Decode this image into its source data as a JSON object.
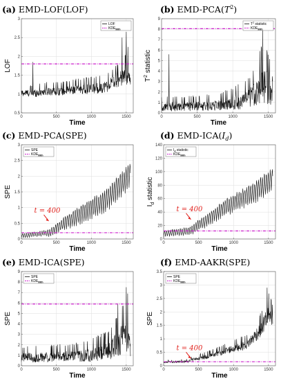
{
  "chart_data": [
    {
      "type": "line",
      "label": "(a)",
      "title_text": "EMD-LOF(LOF)",
      "xlabel": "Time",
      "ylabel": "LOF",
      "xlim": [
        0,
        1600
      ],
      "ylim": [
        0.5,
        3
      ],
      "xticks": [
        0,
        500,
        1000,
        1500
      ],
      "yticks": [
        0.5,
        1,
        1.5,
        2,
        2.5,
        3
      ],
      "legend_position": "top-right",
      "series": [
        {
          "name": "LOF",
          "kind": "noisy",
          "x": [
            0,
            200,
            400,
            600,
            800,
            1000,
            1200,
            1400,
            1500,
            1560
          ],
          "y": [
            1.0,
            1.0,
            1.05,
            1.05,
            1.1,
            1.1,
            1.15,
            1.35,
            1.45,
            1.3
          ],
          "amplitude": [
            0.15,
            0.18,
            0.2,
            0.2,
            0.22,
            0.25,
            0.28,
            0.35,
            0.45,
            0.35
          ],
          "peaks": [
            [
              165,
              1.85
            ],
            [
              1440,
              2.5
            ],
            [
              1500,
              2.65
            ],
            [
              1525,
              2.25
            ]
          ]
        },
        {
          "name": "KDE99th",
          "kind": "threshold",
          "value": 1.8,
          "color": "#cc22cc"
        }
      ],
      "legend": [
        {
          "text": "LOF",
          "sub": ""
        },
        {
          "text": "KDE",
          "sub": "99th"
        }
      ]
    },
    {
      "type": "line",
      "label": "(b)",
      "title_text": "EMD-PCA(",
      "title_ital": "T",
      "title_sup": "2",
      "title_tail": ")",
      "xlabel": "Time",
      "ylabel": "T",
      "ylabel_sup": "2",
      "ylabel_tail": " statistic",
      "xlim": [
        0,
        1600
      ],
      "ylim": [
        0,
        9
      ],
      "xticks": [
        0,
        500,
        1000,
        1500
      ],
      "yticks": [
        0,
        1,
        2,
        3,
        4,
        5,
        6,
        7,
        8,
        9
      ],
      "legend_position": "top-right",
      "series": [
        {
          "name": "T2 statistic",
          "kind": "noisy",
          "x": [
            0,
            400,
            800,
            1000,
            1200,
            1300,
            1400,
            1500,
            1560
          ],
          "y": [
            0.5,
            0.5,
            0.6,
            0.8,
            1.0,
            1.5,
            2.2,
            2.0,
            1.2
          ],
          "amplitude": [
            0.8,
            0.8,
            0.9,
            1.2,
            1.5,
            2.0,
            3.0,
            2.8,
            1.5
          ],
          "peaks": [
            [
              105,
              5.6
            ],
            [
              1130,
              5.8
            ],
            [
              1420,
              8.0
            ],
            [
              1450,
              7.6
            ]
          ]
        },
        {
          "name": "KDE99th",
          "kind": "threshold",
          "value": 8.05,
          "color": "#cc22cc"
        }
      ],
      "legend": [
        {
          "text": "T",
          "sup": "2",
          "tail": " statistic",
          "sub": ""
        },
        {
          "text": "KDE",
          "sub": "99th"
        }
      ]
    },
    {
      "type": "line",
      "label": "(c)",
      "title_text": "EMD-PCA(SPE)",
      "xlabel": "Time",
      "ylabel": "SPE",
      "xlim": [
        0,
        1600
      ],
      "ylim": [
        0,
        3
      ],
      "xticks": [
        0,
        500,
        1000,
        1500
      ],
      "yticks": [
        0,
        0.5,
        1,
        1.5,
        2,
        2.5,
        3
      ],
      "legend_position": "top-left",
      "annotation": {
        "text": "t = 400",
        "x": 400,
        "y": 0.55
      },
      "series": [
        {
          "name": "SPE",
          "kind": "periodic",
          "x": [
            0,
            350,
            400,
            600,
            800,
            1000,
            1200,
            1400,
            1560
          ],
          "y": [
            0.1,
            0.2,
            0.2,
            0.5,
            0.75,
            1.0,
            1.25,
            1.7,
            2.1
          ],
          "amplitude": [
            0.12,
            0.15,
            0.2,
            0.35,
            0.45,
            0.55,
            0.6,
            0.65,
            0.65
          ]
        },
        {
          "name": "KDE99th",
          "kind": "threshold",
          "value": 0.2,
          "color": "#cc22cc"
        }
      ],
      "legend": [
        {
          "text": "SPE",
          "sub": ""
        },
        {
          "text": "KDE",
          "sub": "99th"
        }
      ]
    },
    {
      "type": "line",
      "label": "(d)",
      "title_text": "EMD-ICA(",
      "title_ital": "I",
      "title_sub": "d",
      "title_tail": ")",
      "xlabel": "Time",
      "ylabel": "I",
      "ylabel_sub": "d",
      "ylabel_tail": " statistic",
      "xlim": [
        0,
        1600
      ],
      "ylim": [
        0,
        140
      ],
      "xticks": [
        0,
        500,
        1000,
        1500
      ],
      "yticks": [
        0,
        20,
        40,
        60,
        80,
        100,
        120,
        140
      ],
      "legend_position": "top-left",
      "annotation": {
        "text": "t = 400",
        "x": 400,
        "y": 28
      },
      "series": [
        {
          "name": "Id statistic",
          "kind": "periodic",
          "x": [
            0,
            350,
            400,
            600,
            800,
            1000,
            1200,
            1400,
            1560
          ],
          "y": [
            8,
            12,
            14,
            28,
            42,
            55,
            65,
            78,
            90
          ],
          "amplitude": [
            8,
            10,
            12,
            16,
            20,
            22,
            25,
            28,
            30
          ]
        },
        {
          "name": "KDE99th",
          "kind": "threshold",
          "value": 12,
          "color": "#cc22cc"
        }
      ],
      "legend": [
        {
          "text": "I",
          "sub": "d",
          "tail": " statistic"
        },
        {
          "text": "KDE",
          "sub": "99th"
        }
      ]
    },
    {
      "type": "line",
      "label": "(e)",
      "title_text": "EMD-ICA(SPE)",
      "xlabel": "Time",
      "ylabel": "SPE",
      "xlim": [
        0,
        1600
      ],
      "ylim": [
        0,
        9
      ],
      "xticks": [
        0,
        500,
        1000,
        1500
      ],
      "yticks": [
        0,
        1,
        2,
        3,
        4,
        5,
        6,
        7,
        8,
        9
      ],
      "legend_position": "top-left",
      "series": [
        {
          "name": "SPE",
          "kind": "noisy",
          "x": [
            0,
            400,
            800,
            1000,
            1200,
            1300,
            1400,
            1500,
            1560
          ],
          "y": [
            0.7,
            0.7,
            0.8,
            0.9,
            1.1,
            1.4,
            2.0,
            2.2,
            1.5
          ],
          "amplitude": [
            0.8,
            0.9,
            1.0,
            1.2,
            1.5,
            1.8,
            2.5,
            3.0,
            2.0
          ],
          "peaks": [
            [
              1450,
              8.3
            ],
            [
              1500,
              7.5
            ],
            [
              1520,
              6.9
            ],
            [
              1380,
              5.9
            ]
          ]
        },
        {
          "name": "KDE99th",
          "kind": "threshold",
          "value": 5.9,
          "color": "#cc22cc"
        }
      ],
      "legend": [
        {
          "text": "SPE",
          "sub": ""
        },
        {
          "text": "KDE",
          "sub": "99th"
        }
      ]
    },
    {
      "type": "line",
      "label": "(f)",
      "title_text": "EMD-AAKR(SPE)",
      "xlabel": "Time",
      "ylabel": "SPE",
      "xlim": [
        0,
        1600
      ],
      "ylim": [
        0,
        3.5
      ],
      "xticks": [
        0,
        500,
        1000,
        1500
      ],
      "yticks": [
        0,
        0.5,
        1,
        1.5,
        2,
        2.5,
        3,
        3.5
      ],
      "legend_position": "top-left",
      "annotation": {
        "text": "t = 400",
        "x": 400,
        "y": 0.25
      },
      "series": [
        {
          "name": "SPE",
          "kind": "noisy",
          "x": [
            0,
            350,
            400,
            600,
            800,
            1000,
            1200,
            1400,
            1500,
            1560
          ],
          "y": [
            0.12,
            0.15,
            0.2,
            0.3,
            0.45,
            0.6,
            0.75,
            1.3,
            1.8,
            1.5
          ],
          "amplitude": [
            0.06,
            0.08,
            0.1,
            0.15,
            0.2,
            0.25,
            0.3,
            0.5,
            0.7,
            0.6
          ],
          "peaks": [
            [
              1510,
              3.2
            ],
            [
              1480,
              2.9
            ]
          ]
        },
        {
          "name": "KDE99th",
          "kind": "threshold",
          "value": 0.15,
          "color": "#cc22cc"
        }
      ],
      "legend": [
        {
          "text": "SPE",
          "sub": ""
        },
        {
          "text": "KDE",
          "sub": "99th"
        }
      ]
    }
  ]
}
